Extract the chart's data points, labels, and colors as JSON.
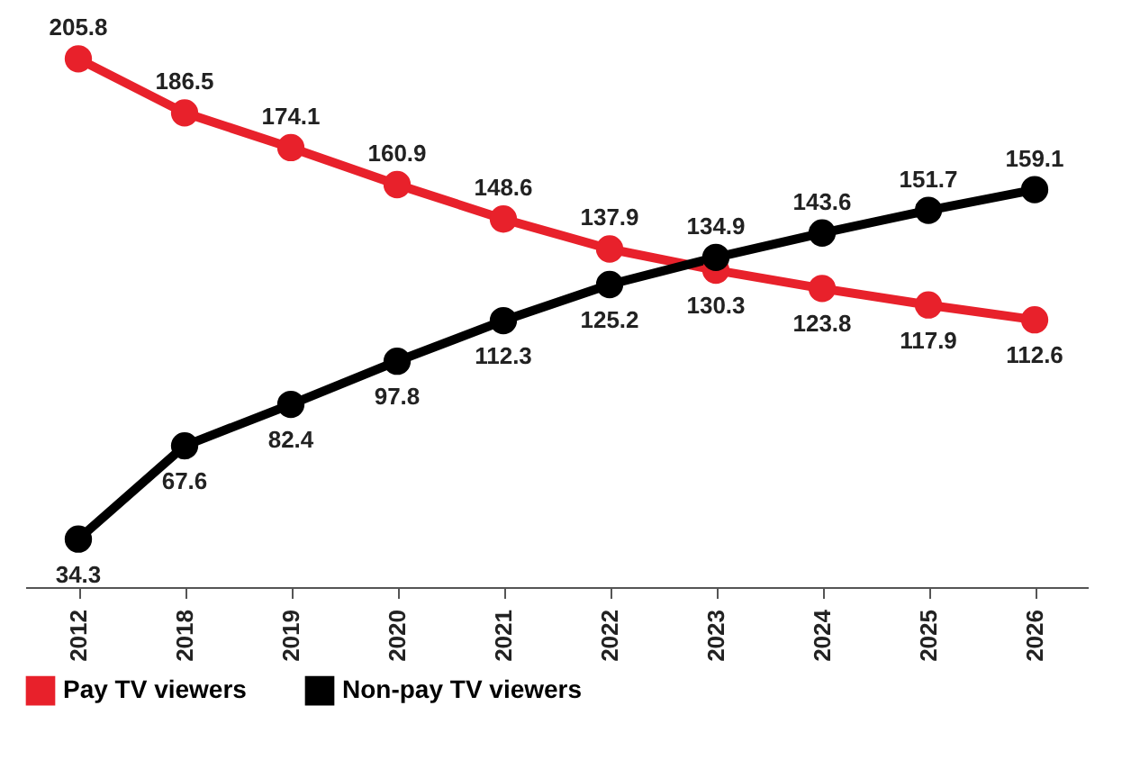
{
  "chart_data": {
    "type": "line",
    "categories": [
      "2012",
      "2018",
      "2019",
      "2020",
      "2021",
      "2022",
      "2023",
      "2024",
      "2025",
      "2026"
    ],
    "series": [
      {
        "name": "Pay TV viewers",
        "color": "#e8212b",
        "values": [
          205.8,
          186.5,
          174.1,
          160.9,
          148.6,
          137.9,
          130.3,
          123.8,
          117.9,
          112.6
        ]
      },
      {
        "name": "Non-pay TV viewers",
        "color": "#000000",
        "values": [
          34.3,
          67.6,
          82.4,
          97.8,
          112.3,
          125.2,
          134.9,
          143.6,
          151.7,
          159.1
        ]
      }
    ],
    "data_labels": true,
    "marker": "circle",
    "line_style": "solid",
    "grid": false,
    "legend": "bottom left",
    "tick_labels": "x"
  }
}
